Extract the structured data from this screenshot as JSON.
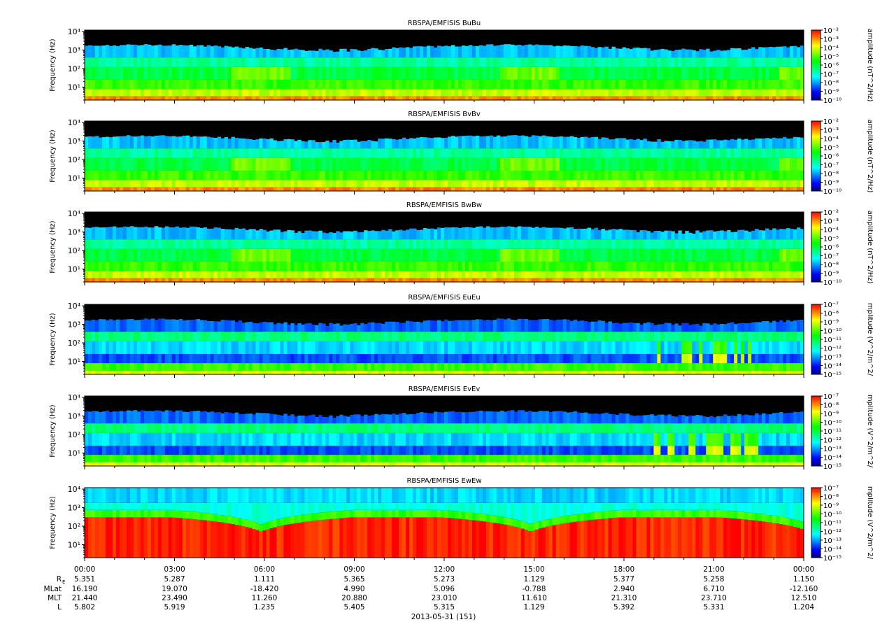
{
  "chart_data": {
    "type": "heatmap",
    "layout": "stacked-panels",
    "x_label": "2013-05-31 (151)",
    "x_ticks": [
      "00:00",
      "03:00",
      "06:00",
      "09:00",
      "12:00",
      "15:00",
      "18:00",
      "21:00",
      "00:00"
    ],
    "x_range_hours": [
      0,
      24
    ],
    "panels": [
      {
        "title": "RBSPA/EMFISIS  BuBu",
        "ylabel": "Frequency (Hz)",
        "ylim_hz": [
          2,
          12000
        ],
        "yscale": "log",
        "y_ticks": [
          "10¹",
          "10²",
          "10³",
          "10⁴"
        ],
        "y_tick_values": [
          10,
          100,
          1000,
          10000
        ],
        "colorbar_label": "amplitude (nT^2/Hz)",
        "colorbar_ticks": [
          "10⁻²",
          "10⁻³",
          "10⁻⁴",
          "10⁻⁵",
          "10⁻⁶",
          "10⁻⁷",
          "10⁻⁸",
          "10⁻⁹",
          "10⁻¹⁰"
        ],
        "colorbar_exp_range": [
          -10,
          -2
        ],
        "style": "magnetic"
      },
      {
        "title": "RBSPA/EMFISIS  BvBv",
        "ylabel": "Frequency (Hz)",
        "ylim_hz": [
          2,
          12000
        ],
        "yscale": "log",
        "y_ticks": [
          "10¹",
          "10²",
          "10³",
          "10⁴"
        ],
        "y_tick_values": [
          10,
          100,
          1000,
          10000
        ],
        "colorbar_label": "amplitude (nT^2/Hz)",
        "colorbar_ticks": [
          "10⁻²",
          "10⁻³",
          "10⁻⁴",
          "10⁻⁵",
          "10⁻⁶",
          "10⁻⁷",
          "10⁻⁸",
          "10⁻⁹",
          "10⁻¹⁰"
        ],
        "colorbar_exp_range": [
          -10,
          -2
        ],
        "style": "magnetic"
      },
      {
        "title": "RBSPA/EMFISIS  BwBw",
        "ylabel": "Frequency (Hz)",
        "ylim_hz": [
          2,
          12000
        ],
        "yscale": "log",
        "y_ticks": [
          "10¹",
          "10²",
          "10³",
          "10⁴"
        ],
        "y_tick_values": [
          10,
          100,
          1000,
          10000
        ],
        "colorbar_label": "amplitude (nT^2/Hz)",
        "colorbar_ticks": [
          "10⁻²",
          "10⁻³",
          "10⁻⁴",
          "10⁻⁵",
          "10⁻⁶",
          "10⁻⁷",
          "10⁻⁸",
          "10⁻⁹",
          "10⁻¹⁰"
        ],
        "colorbar_exp_range": [
          -10,
          -2
        ],
        "style": "magnetic"
      },
      {
        "title": "RBSPA/EMFISIS  EuEu",
        "ylabel": "Frequency (Hz)",
        "ylim_hz": [
          2,
          12000
        ],
        "yscale": "log",
        "y_ticks": [
          "10¹",
          "10²",
          "10³",
          "10⁴"
        ],
        "y_tick_values": [
          10,
          100,
          1000,
          10000
        ],
        "colorbar_label": "mplitude (V^2/m^2/",
        "colorbar_ticks": [
          "10⁻⁷",
          "10⁻⁸",
          "10⁻⁹",
          "10⁻¹⁰",
          "10⁻¹¹",
          "10⁻¹²",
          "10⁻¹³",
          "10⁻¹⁴",
          "10⁻¹⁵"
        ],
        "colorbar_exp_range": [
          -15,
          -7
        ],
        "style": "electric"
      },
      {
        "title": "RBSPA/EMFISIS  EvEv",
        "ylabel": "Frequency (Hz)",
        "ylim_hz": [
          2,
          12000
        ],
        "yscale": "log",
        "y_ticks": [
          "10¹",
          "10²",
          "10³",
          "10⁴"
        ],
        "y_tick_values": [
          10,
          100,
          1000,
          10000
        ],
        "colorbar_label": "mplitude (V^2/m^2/",
        "colorbar_ticks": [
          "10⁻⁷",
          "10⁻⁸",
          "10⁻⁹",
          "10⁻¹⁰",
          "10⁻¹¹",
          "10⁻¹²",
          "10⁻¹³",
          "10⁻¹⁴",
          "10⁻¹⁵"
        ],
        "colorbar_exp_range": [
          -15,
          -7
        ],
        "style": "electric"
      },
      {
        "title": "RBSPA/EMFISIS  EwEw",
        "ylabel": "Frequency (Hz)",
        "ylim_hz": [
          2,
          12000
        ],
        "yscale": "log",
        "y_ticks": [
          "10¹",
          "10²",
          "10³",
          "10⁴"
        ],
        "y_tick_values": [
          10,
          100,
          1000,
          10000
        ],
        "colorbar_label": "mplitude (V^2/m^2/",
        "colorbar_ticks": [
          "10⁻⁷",
          "10⁻⁸",
          "10⁻⁹",
          "10⁻¹⁰",
          "10⁻¹¹",
          "10⁻¹²",
          "10⁻¹³",
          "10⁻¹⁴",
          "10⁻¹⁵"
        ],
        "colorbar_exp_range": [
          -15,
          -7
        ],
        "style": "electric-w"
      }
    ],
    "ephemeris": {
      "rows": [
        {
          "label": "R",
          "label_sub": "E",
          "values": [
            "5.351",
            "5.287",
            "1.111",
            "5.365",
            "5.273",
            "1.129",
            "5.377",
            "5.258",
            "1.150"
          ]
        },
        {
          "label": "MLat",
          "label_sub": "",
          "values": [
            "16.190",
            "19.070",
            "-18.420",
            "4.990",
            "5.096",
            "-0.788",
            "2.940",
            "6.710",
            "-12.160"
          ]
        },
        {
          "label": "MLT",
          "label_sub": "",
          "values": [
            "21.440",
            "23.490",
            "11.260",
            "20.880",
            "23.010",
            "11.610",
            "21.310",
            "23.710",
            "12.510"
          ]
        },
        {
          "label": "L",
          "label_sub": "",
          "values": [
            "5.802",
            "5.919",
            "1.235",
            "5.405",
            "5.315",
            "1.129",
            "5.392",
            "5.331",
            "1.204"
          ]
        }
      ]
    },
    "colormap": [
      "#000080",
      "#0000ff",
      "#0080ff",
      "#00ffff",
      "#00ff80",
      "#00ff00",
      "#80ff00",
      "#ffff00",
      "#ff8000",
      "#ff0000"
    ],
    "background_above_signal": "#000000"
  }
}
